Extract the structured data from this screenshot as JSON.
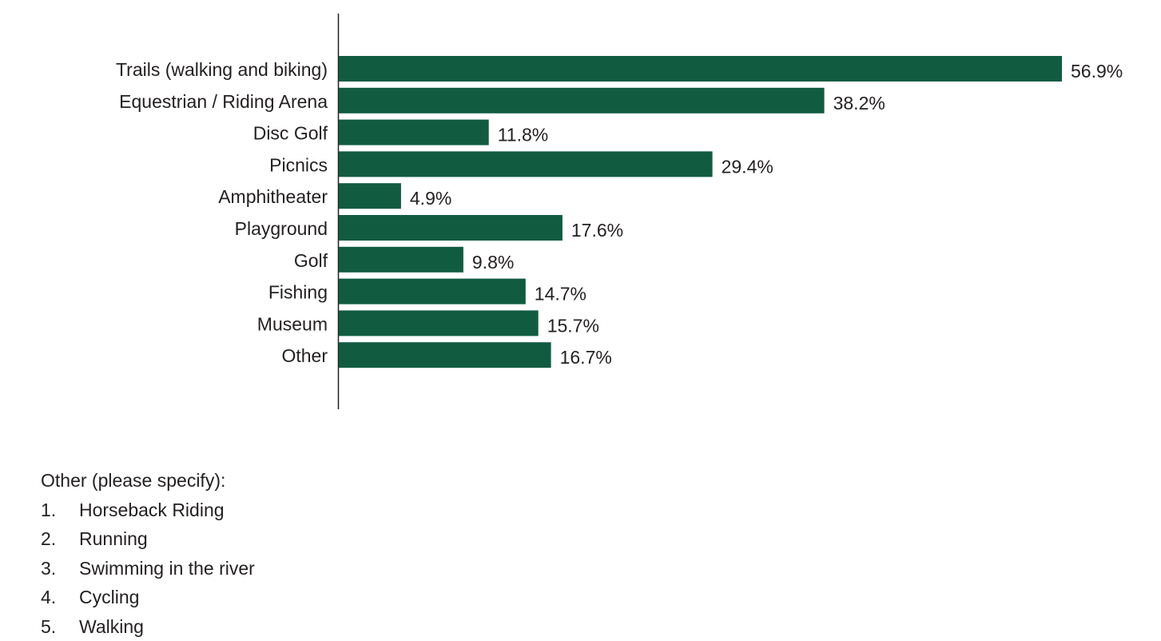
{
  "chart_data": {
    "type": "bar",
    "orientation": "horizontal",
    "categories": [
      "Trails (walking and biking)",
      "Equestrian / Riding Arena",
      "Disc Golf",
      "Picnics",
      "Amphitheater",
      "Playground",
      "Golf",
      "Fishing",
      "Museum",
      "Other"
    ],
    "values": [
      56.9,
      38.2,
      11.8,
      29.4,
      4.9,
      17.6,
      9.8,
      14.7,
      15.7,
      16.7
    ],
    "value_labels": [
      "56.9%",
      "38.2%",
      "11.8%",
      "29.4%",
      "4.9%",
      "17.6%",
      "9.8%",
      "14.7%",
      "15.7%",
      "16.7%"
    ],
    "bar_color": "#115c41",
    "xlim": [
      0,
      56.9
    ],
    "grid": false,
    "legend": "none"
  },
  "other_section": {
    "heading": "Other (please specify):",
    "items": [
      {
        "num": "1.",
        "text": "Horseback Riding"
      },
      {
        "num": "2.",
        "text": "Running"
      },
      {
        "num": "3.",
        "text": "Swimming in the river"
      },
      {
        "num": "4.",
        "text": "Cycling"
      },
      {
        "num": "5.",
        "text": "Walking"
      }
    ]
  }
}
